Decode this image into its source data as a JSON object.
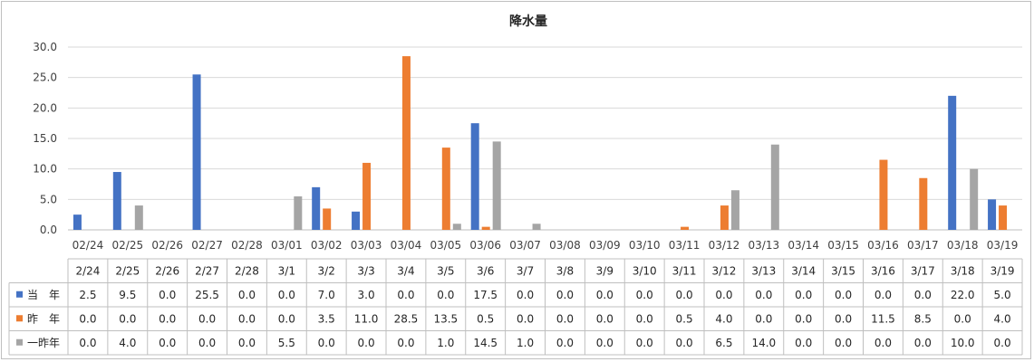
{
  "chart_data": {
    "type": "bar",
    "title": "降水量",
    "categories": [
      "02/24",
      "02/25",
      "02/26",
      "02/27",
      "02/28",
      "03/01",
      "03/02",
      "03/03",
      "03/04",
      "03/05",
      "03/06",
      "03/07",
      "03/08",
      "03/09",
      "03/10",
      "03/11",
      "03/12",
      "03/13",
      "03/14",
      "03/15",
      "03/16",
      "03/17",
      "03/18",
      "03/19"
    ],
    "table_categories": [
      "2/24",
      "2/25",
      "2/26",
      "2/27",
      "2/28",
      "3/1",
      "3/2",
      "3/3",
      "3/4",
      "3/5",
      "3/6",
      "3/7",
      "3/8",
      "3/9",
      "3/10",
      "3/11",
      "3/12",
      "3/13",
      "3/14",
      "3/15",
      "3/16",
      "3/17",
      "3/18",
      "3/19"
    ],
    "ylim": [
      0,
      30
    ],
    "yticks": [
      "0.0",
      "5.0",
      "10.0",
      "15.0",
      "20.0",
      "25.0",
      "30.0"
    ],
    "grid": true,
    "legend": "data-table",
    "series": [
      {
        "name": "当　年",
        "color": "#4472C4",
        "values": [
          2.5,
          9.5,
          0.0,
          25.5,
          0.0,
          0.0,
          7.0,
          3.0,
          0.0,
          0.0,
          17.5,
          0.0,
          0.0,
          0.0,
          0.0,
          0.0,
          0.0,
          0.0,
          0.0,
          0.0,
          0.0,
          0.0,
          22.0,
          5.0
        ],
        "labels": [
          "2.5",
          "9.5",
          "0.0",
          "25.5",
          "0.0",
          "0.0",
          "7.0",
          "3.0",
          "0.0",
          "0.0",
          "17.5",
          "0.0",
          "0.0",
          "0.0",
          "0.0",
          "0.0",
          "0.0",
          "0.0",
          "0.0",
          "0.0",
          "0.0",
          "0.0",
          "22.0",
          "5.0"
        ]
      },
      {
        "name": "昨　年",
        "color": "#ED7D31",
        "values": [
          0.0,
          0.0,
          0.0,
          0.0,
          0.0,
          0.0,
          3.5,
          11.0,
          28.5,
          13.5,
          0.5,
          0.0,
          0.0,
          0.0,
          0.0,
          0.5,
          4.0,
          0.0,
          0.0,
          0.0,
          11.5,
          8.5,
          0.0,
          4.0
        ],
        "labels": [
          "0.0",
          "0.0",
          "0.0",
          "0.0",
          "0.0",
          "0.0",
          "3.5",
          "11.0",
          "28.5",
          "13.5",
          "0.5",
          "0.0",
          "0.0",
          "0.0",
          "0.0",
          "0.5",
          "4.0",
          "0.0",
          "0.0",
          "0.0",
          "11.5",
          "8.5",
          "0.0",
          "4.0"
        ]
      },
      {
        "name": "一昨年",
        "color": "#A5A5A5",
        "values": [
          0.0,
          4.0,
          0.0,
          0.0,
          0.0,
          5.5,
          0.0,
          0.0,
          0.0,
          1.0,
          14.5,
          1.0,
          0.0,
          0.0,
          0.0,
          0.0,
          6.5,
          14.0,
          0.0,
          0.0,
          0.0,
          0.0,
          10.0,
          0.0
        ],
        "labels": [
          "0.0",
          "4.0",
          "0.0",
          "0.0",
          "0.0",
          "5.5",
          "0.0",
          "0.0",
          "0.0",
          "1.0",
          "14.5",
          "1.0",
          "0.0",
          "0.0",
          "0.0",
          "0.0",
          "6.5",
          "14.0",
          "0.0",
          "0.0",
          "0.0",
          "0.0",
          "10.0",
          "0.0"
        ]
      }
    ]
  }
}
